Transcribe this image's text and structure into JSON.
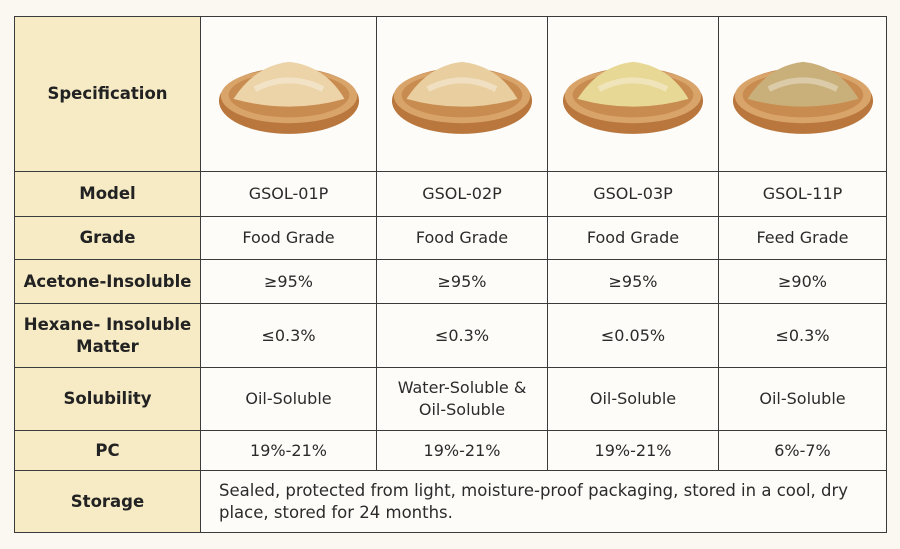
{
  "table": {
    "header": "Specification",
    "rows": [
      {
        "label": "Model",
        "cells": [
          "GSOL-01P",
          "GSOL-02P",
          "GSOL-03P",
          "GSOL-11P"
        ]
      },
      {
        "label": "Grade",
        "cells": [
          "Food Grade",
          "Food Grade",
          "Food Grade",
          "Feed Grade"
        ]
      },
      {
        "label": "Acetone-Insoluble",
        "cells": [
          "≥95%",
          "≥95%",
          "≥95%",
          "≥90%"
        ]
      },
      {
        "label": "Hexane- Insoluble Matter",
        "cells": [
          "≤0.3%",
          "≤0.3%",
          "≤0.05%",
          "≤0.3%"
        ]
      },
      {
        "label": "Solubility",
        "cells": [
          "Oil-Soluble",
          "Water-Soluble & Oil-Soluble",
          "Oil-Soluble",
          "Oil-Soluble"
        ]
      },
      {
        "label": "PC",
        "cells": [
          "19%-21%",
          "19%-21%",
          "19%-21%",
          "6%-7%"
        ]
      }
    ],
    "storage": {
      "label": "Storage",
      "text": "Sealed, protected from light, moisture-proof packaging, stored in a cool, dry place, stored for 24 months."
    }
  }
}
